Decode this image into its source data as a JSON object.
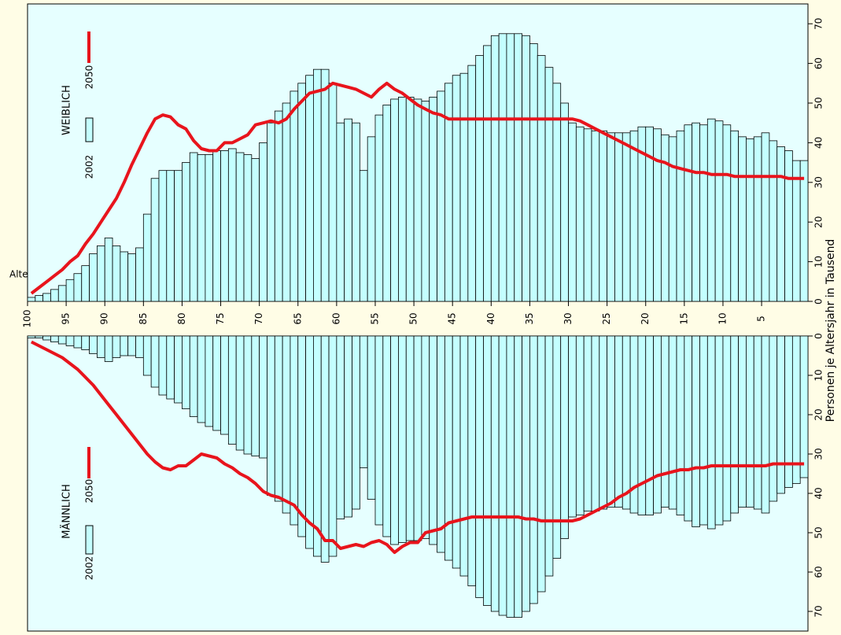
{
  "chart_data": [
    {
      "type": "bar",
      "title": "WEIBLICH",
      "xlabel": "Alter in Jahren",
      "ylabel": "Personen je Altersjahr in Tausend",
      "x": [
        100,
        99,
        98,
        97,
        96,
        95,
        94,
        93,
        92,
        91,
        90,
        89,
        88,
        87,
        86,
        85,
        84,
        83,
        82,
        81,
        80,
        79,
        78,
        77,
        76,
        75,
        74,
        73,
        72,
        71,
        70,
        69,
        68,
        67,
        66,
        65,
        64,
        63,
        62,
        61,
        60,
        59,
        58,
        57,
        56,
        55,
        54,
        53,
        52,
        51,
        50,
        49,
        48,
        47,
        46,
        45,
        44,
        43,
        42,
        41,
        40,
        39,
        38,
        37,
        36,
        35,
        34,
        33,
        32,
        31,
        30,
        29,
        28,
        27,
        26,
        25,
        24,
        23,
        22,
        21,
        20,
        19,
        18,
        17,
        16,
        15,
        14,
        13,
        12,
        11,
        10,
        9,
        8,
        7,
        6,
        5,
        4,
        3,
        2,
        1,
        0
      ],
      "xlim": [
        100,
        -1
      ],
      "xticks": [
        100,
        95,
        90,
        85,
        80,
        75,
        70,
        65,
        60,
        55,
        50,
        45,
        40,
        35,
        30,
        25,
        20,
        15,
        10,
        5
      ],
      "ylim": [
        0,
        75
      ],
      "yticks": [
        0,
        10,
        20,
        30,
        40,
        50,
        60,
        70
      ],
      "series": [
        {
          "name": "2002",
          "type": "bar",
          "color": "#c4ffff",
          "values": [
            1,
            1.5,
            2,
            3,
            4,
            5.5,
            7,
            9,
            12,
            14,
            16,
            14,
            12.5,
            12,
            13.5,
            22,
            31,
            33,
            33,
            33,
            35,
            37.5,
            37,
            37,
            38,
            38,
            38.5,
            37.5,
            37,
            36,
            40,
            45,
            48,
            50,
            53,
            55,
            57,
            58.5,
            58.5,
            55,
            45,
            46,
            45,
            33,
            41.5,
            47,
            49.5,
            51,
            51.5,
            51.5,
            51,
            50.5,
            51.5,
            53,
            55,
            57,
            57.5,
            59.5,
            62,
            64.5,
            67,
            67.5,
            67.5,
            67.5,
            67,
            65,
            62,
            59,
            55,
            50,
            45,
            44,
            43.5,
            43,
            43,
            42.5,
            42.5,
            42.5,
            43,
            44,
            44,
            43.5,
            42,
            41.5,
            43,
            44.5,
            45,
            44.5,
            46,
            45.5,
            44.5,
            43,
            41.5,
            41,
            41.5,
            42.5,
            40.5,
            39,
            38,
            35.5,
            35.5
          ]
        },
        {
          "name": "2050",
          "type": "line",
          "color": "#e8141c",
          "values": [
            2,
            3.5,
            5,
            6.5,
            8,
            10,
            11.5,
            14.5,
            17,
            20,
            23,
            26,
            30,
            34.5,
            38.5,
            42.5,
            46,
            47,
            46.5,
            44.5,
            43.5,
            40.5,
            38.5,
            38,
            38,
            40,
            40,
            41,
            42,
            44.5,
            45,
            45.5,
            45,
            46,
            48.5,
            50.5,
            52.5,
            53,
            53.5,
            55,
            54.5,
            54,
            53.5,
            52.5,
            51.5,
            53.5,
            55,
            53.5,
            52.5,
            51,
            49.5,
            48.5,
            47.5,
            47,
            46,
            46,
            46,
            46,
            46,
            46,
            46,
            46,
            46,
            46,
            46,
            46,
            46,
            46,
            46,
            46,
            46,
            45.5,
            44.5,
            43.5,
            42.5,
            41.5,
            40.5,
            39.5,
            38.5,
            37.5,
            36.5,
            35.5,
            35,
            34,
            33.5,
            33,
            32.5,
            32.5,
            32,
            32,
            32,
            31.5,
            31.5,
            31.5,
            31.5,
            31.5,
            31.5,
            31.5,
            31,
            31,
            31
          ]
        }
      ]
    },
    {
      "type": "bar",
      "title": "MÄNNLICH",
      "x": [
        100,
        99,
        98,
        97,
        96,
        95,
        94,
        93,
        92,
        91,
        90,
        89,
        88,
        87,
        86,
        85,
        84,
        83,
        82,
        81,
        80,
        79,
        78,
        77,
        76,
        75,
        74,
        73,
        72,
        71,
        70,
        69,
        68,
        67,
        66,
        65,
        64,
        63,
        62,
        61,
        60,
        59,
        58,
        57,
        56,
        55,
        54,
        53,
        52,
        51,
        50,
        49,
        48,
        47,
        46,
        45,
        44,
        43,
        42,
        41,
        40,
        39,
        38,
        37,
        36,
        35,
        34,
        33,
        32,
        31,
        30,
        29,
        28,
        27,
        26,
        25,
        24,
        23,
        22,
        21,
        20,
        19,
        18,
        17,
        16,
        15,
        14,
        13,
        12,
        11,
        10,
        9,
        8,
        7,
        6,
        5,
        4,
        3,
        2,
        1,
        0
      ],
      "xlim": [
        100,
        -1
      ],
      "ylim": [
        0,
        75
      ],
      "yticks": [
        0,
        10,
        20,
        30,
        40,
        50,
        60,
        70
      ],
      "series": [
        {
          "name": "2002",
          "type": "bar",
          "color": "#c4ffff",
          "values": [
            0.5,
            0.5,
            1,
            1.5,
            2,
            2.5,
            3,
            3.5,
            4.5,
            5.5,
            6.5,
            5.5,
            5,
            5,
            5.5,
            10,
            13,
            15,
            16,
            17,
            18.5,
            20.5,
            22,
            23,
            24,
            25,
            27.5,
            29,
            30,
            30.5,
            31,
            40.5,
            42,
            45,
            48,
            51,
            54,
            56,
            57.5,
            56,
            46.5,
            46,
            44,
            33.5,
            41.5,
            48,
            51,
            53,
            52.5,
            52,
            52,
            51.5,
            53,
            55,
            57,
            59,
            61,
            63.5,
            66.5,
            68.5,
            70,
            71,
            71.5,
            71.5,
            70,
            68,
            65,
            61,
            56.5,
            51.5,
            46,
            45.5,
            44.5,
            44.5,
            44,
            43.5,
            43.5,
            44,
            45,
            45.5,
            45.5,
            45,
            43.5,
            44,
            45.5,
            47,
            48.5,
            48,
            49,
            48,
            47,
            45,
            43.5,
            43.5,
            44,
            45,
            42,
            40,
            38.5,
            37.5,
            36
          ]
        },
        {
          "name": "2050",
          "type": "line",
          "color": "#e8141c",
          "values": [
            1.5,
            2.5,
            3.5,
            4.5,
            5.5,
            7,
            8.5,
            10.5,
            12.5,
            15,
            17.5,
            20,
            22.5,
            25,
            27.5,
            30,
            32,
            33.5,
            34,
            33,
            33,
            31.5,
            30,
            30.5,
            31,
            32.5,
            33.5,
            35,
            36,
            37.5,
            39.5,
            40.5,
            41,
            42,
            43,
            45.5,
            47.5,
            49,
            52,
            52,
            54,
            53.5,
            53,
            53.5,
            52.5,
            52,
            53,
            55,
            53.5,
            52.5,
            52.5,
            50,
            49.5,
            49,
            47.5,
            47,
            46.5,
            46,
            46,
            46,
            46,
            46,
            46,
            46,
            46.5,
            46.5,
            47,
            47,
            47,
            47,
            47,
            46.5,
            45.5,
            44.5,
            43.5,
            42.5,
            41,
            40,
            38.5,
            37.5,
            36.5,
            35.5,
            35,
            34.5,
            34,
            34,
            33.5,
            33.5,
            33,
            33,
            33,
            33,
            33,
            33,
            33,
            33,
            32.5,
            32.5,
            32.5,
            32.5,
            32.5
          ]
        }
      ]
    }
  ]
}
